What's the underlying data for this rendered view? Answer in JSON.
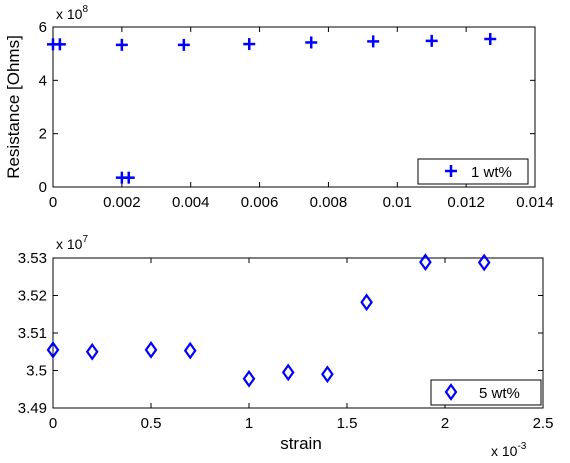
{
  "chart_data": [
    {
      "type": "scatter",
      "xlabel": "",
      "ylabel": "Resistance [Ohms]",
      "y_multiplier_label": "x 10",
      "y_multiplier_exp": "8",
      "xlim": [
        0,
        0.014
      ],
      "ylim": [
        0,
        6
      ],
      "xticks": [
        0,
        0.002,
        0.004,
        0.006,
        0.008,
        0.01,
        0.012,
        0.014
      ],
      "xtick_labels": [
        "0",
        "0.002",
        "0.004",
        "0.006",
        "0.008",
        "0.01",
        "0.012",
        "0.014"
      ],
      "yticks": [
        0,
        2,
        4,
        6
      ],
      "ytick_labels": [
        "0",
        "2",
        "4",
        "6"
      ],
      "grid": false,
      "legend_position": "bottom-right",
      "series": [
        {
          "name": "1 wt%",
          "marker": "plus",
          "color": "#0000ff",
          "x": [
            0.0,
            0.0002,
            0.002,
            0.0022,
            0.002,
            0.0038,
            0.0057,
            0.0075,
            0.0093,
            0.011,
            0.0127
          ],
          "y": [
            5.35,
            5.35,
            0.35,
            0.35,
            5.33,
            5.33,
            5.36,
            5.42,
            5.46,
            5.48,
            5.55
          ]
        }
      ]
    },
    {
      "type": "scatter",
      "xlabel": "strain",
      "ylabel": "",
      "y_multiplier_label": "x 10",
      "y_multiplier_exp": "7",
      "x_multiplier_label": "x 10",
      "x_multiplier_exp": "-3",
      "xlim": [
        0,
        2.5
      ],
      "ylim": [
        3.49,
        3.53
      ],
      "xticks": [
        0,
        0.5,
        1,
        1.5,
        2,
        2.5
      ],
      "xtick_labels": [
        "0",
        "0.5",
        "1",
        "1.5",
        "2",
        "2.5"
      ],
      "yticks": [
        3.49,
        3.5,
        3.51,
        3.52,
        3.53
      ],
      "ytick_labels": [
        "3.49",
        "3.5",
        "3.51",
        "3.52",
        "3.53"
      ],
      "grid": false,
      "legend_position": "bottom-right",
      "series": [
        {
          "name": "5 wt%",
          "marker": "diamond",
          "color": "#0000ff",
          "x": [
            0.0,
            0.2,
            0.5,
            0.7,
            1.0,
            1.2,
            1.4,
            1.6,
            1.9,
            2.2
          ],
          "y": [
            3.5055,
            3.505,
            3.5055,
            3.5053,
            3.4978,
            3.4995,
            3.499,
            3.5182,
            3.5289,
            3.5288
          ]
        }
      ]
    }
  ]
}
